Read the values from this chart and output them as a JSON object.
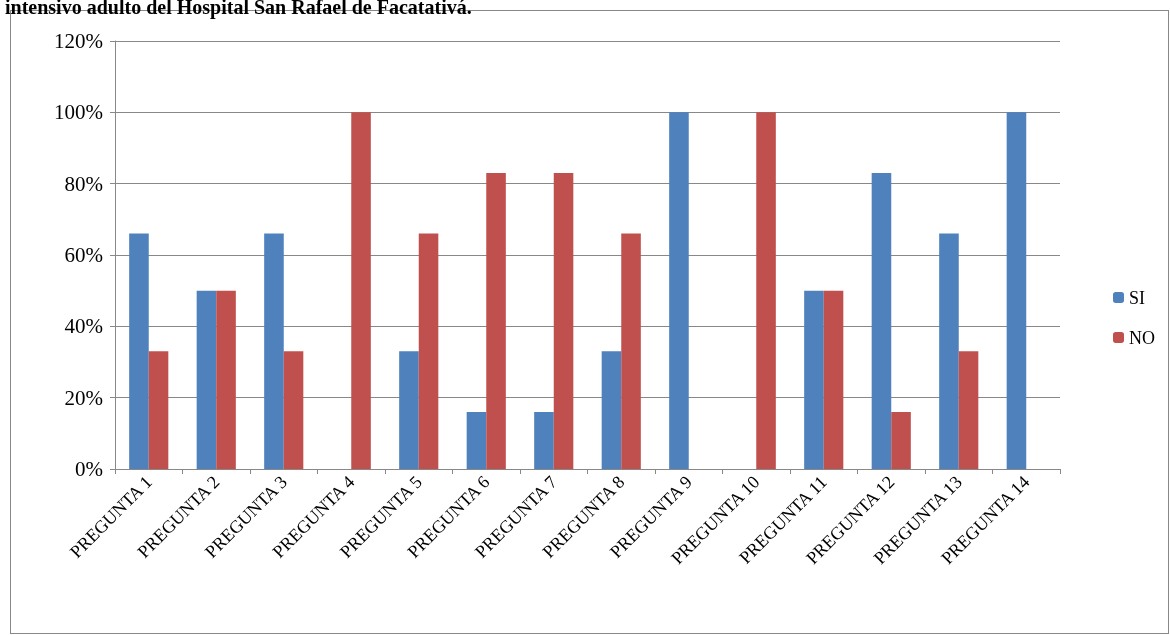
{
  "chart_data": {
    "type": "bar",
    "title": "intensivo adulto del Hospital San Rafael de Facatativá.",
    "categories": [
      "PREGUNTA 1",
      "PREGUNTA 2",
      "PREGUNTA 3",
      "PREGUNTA 4",
      "PREGUNTA 5",
      "PREGUNTA 6",
      "PREGUNTA 7",
      "PREGUNTA 8",
      "PREGUNTA 9",
      "PREGUNTA 10",
      "PREGUNTA 11",
      "PREGUNTA 12",
      "PREGUNTA 13",
      "PREGUNTA 14"
    ],
    "series": [
      {
        "name": "SI",
        "color": "#4f81bd",
        "values": [
          66,
          50,
          66,
          0,
          33,
          16,
          16,
          33,
          100,
          0,
          50,
          83,
          66,
          100
        ]
      },
      {
        "name": "NO",
        "color": "#c0504d",
        "values": [
          33,
          50,
          33,
          100,
          66,
          83,
          83,
          66,
          0,
          100,
          50,
          16,
          33,
          0
        ]
      }
    ],
    "ylim": [
      0,
      120
    ],
    "yticks": [
      {
        "value": 0,
        "label": "0%"
      },
      {
        "value": 20,
        "label": "20%"
      },
      {
        "value": 40,
        "label": "40%"
      },
      {
        "value": 60,
        "label": "60%"
      },
      {
        "value": 80,
        "label": "80%"
      },
      {
        "value": 100,
        "label": "100%"
      },
      {
        "value": 120,
        "label": "120%"
      }
    ],
    "grid": "y",
    "legend": "right"
  }
}
